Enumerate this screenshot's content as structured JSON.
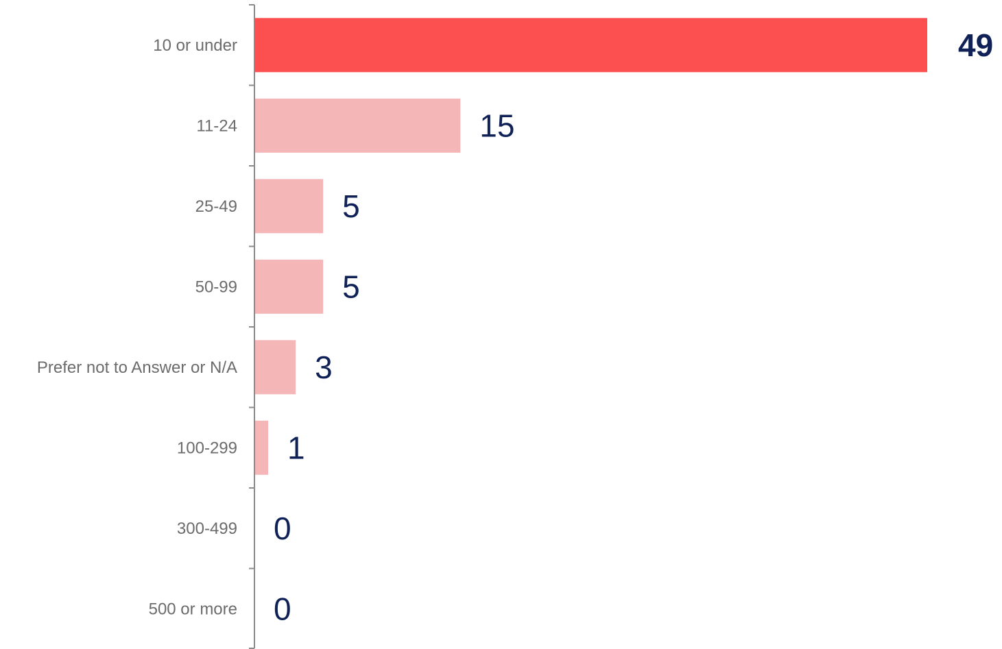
{
  "chart_data": {
    "type": "bar",
    "orientation": "horizontal",
    "categories": [
      "10 or under",
      "11-24",
      "25-49",
      "50-99",
      "Prefer not to Answer or N/A",
      "100-299",
      "300-499",
      "500 or more"
    ],
    "values": [
      49,
      15,
      5,
      5,
      3,
      1,
      0,
      0
    ],
    "highlight_index": 0,
    "title": "",
    "xlabel": "",
    "ylabel": "",
    "xlim": [
      0,
      49
    ],
    "grid": false,
    "legend": "none",
    "colors": {
      "highlight": "#fc5050",
      "bar": "#f5b6b8",
      "value_text": "#0f2157",
      "category_text": "#6b6b6b",
      "axis": "#8a8a8a"
    }
  }
}
